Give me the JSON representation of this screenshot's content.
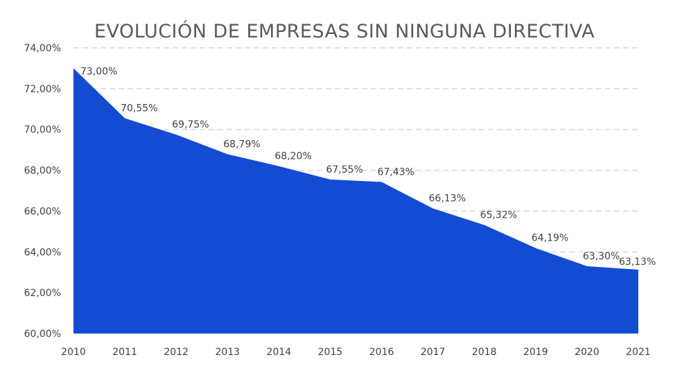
{
  "chart_data": {
    "type": "area",
    "title": "EVOLUCIÓN DE EMPRESAS SIN NINGUNA DIRECTIVA",
    "xlabel": "",
    "ylabel": "",
    "categories": [
      "2010",
      "2011",
      "2012",
      "2013",
      "2014",
      "2015",
      "2016",
      "2017",
      "2018",
      "2019",
      "2020",
      "2021"
    ],
    "values": [
      73.0,
      70.55,
      69.75,
      68.79,
      68.2,
      67.55,
      67.43,
      66.13,
      65.32,
      64.19,
      63.3,
      63.13
    ],
    "data_labels": [
      "73,00%",
      "70,55%",
      "69,75%",
      "68,79%",
      "68,20%",
      "67,55%",
      "67,43%",
      "66,13%",
      "65,32%",
      "64,19%",
      "63,30%",
      "63,13%"
    ],
    "ylim": [
      60,
      74
    ],
    "y_ticks": [
      60,
      62,
      64,
      66,
      68,
      70,
      72,
      74
    ],
    "y_tick_labels": [
      "60,00%",
      "62,00%",
      "64,00%",
      "66,00%",
      "68,00%",
      "70,00%",
      "72,00%",
      "74,00%"
    ],
    "grid": "horizontal dashed",
    "legend": "none",
    "colors": {
      "fill": "#144bd3",
      "title": "#595959",
      "text": "#404040",
      "grid": "#d9d9d9"
    }
  }
}
